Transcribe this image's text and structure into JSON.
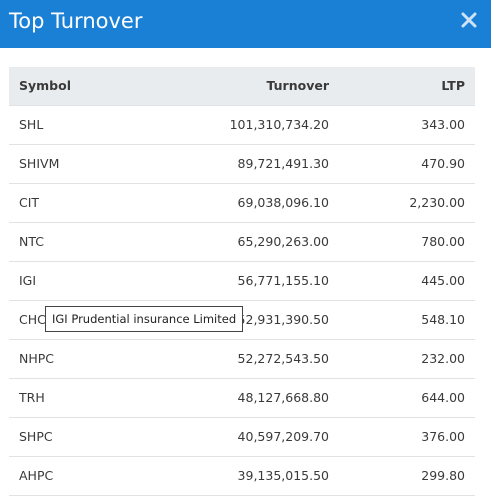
{
  "dialog": {
    "title": "Top Turnover",
    "close_icon": "close-x-icon"
  },
  "table": {
    "headers": [
      "Symbol",
      "Turnover",
      "LTP"
    ],
    "rows": [
      {
        "symbol": "SHL",
        "turnover": "101,310,734.20",
        "ltp": "343.00"
      },
      {
        "symbol": "SHIVM",
        "turnover": "89,721,491.30",
        "ltp": "470.90"
      },
      {
        "symbol": "CIT",
        "turnover": "69,038,096.10",
        "ltp": "2,230.00"
      },
      {
        "symbol": "NTC",
        "turnover": "65,290,263.00",
        "ltp": "780.00"
      },
      {
        "symbol": "IGI",
        "turnover": "56,771,155.10",
        "ltp": "445.00"
      },
      {
        "symbol": "CHCL",
        "turnover": "52,931,390.50",
        "ltp": "548.10"
      },
      {
        "symbol": "NHPC",
        "turnover": "52,272,543.50",
        "ltp": "232.00"
      },
      {
        "symbol": "TRH",
        "turnover": "48,127,668.80",
        "ltp": "644.00"
      },
      {
        "symbol": "SHPC",
        "turnover": "40,597,209.70",
        "ltp": "376.00"
      },
      {
        "symbol": "AHPC",
        "turnover": "39,135,015.50",
        "ltp": "299.80"
      }
    ]
  },
  "tooltip": {
    "text": "IGI Prudential insurance Limited"
  },
  "colors": {
    "header_bg": "#1a80d6",
    "table_header_bg": "#e9ecef"
  }
}
